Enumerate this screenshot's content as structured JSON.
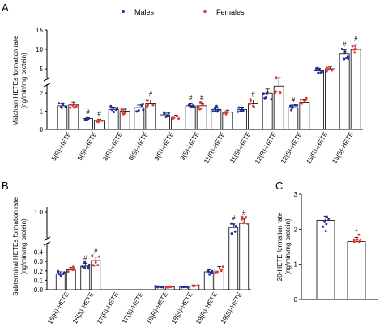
{
  "legend": {
    "males": "Males",
    "females": "Females"
  },
  "colors": {
    "males": "#1f2f9e",
    "females": "#e03a3a"
  },
  "chart_data": [
    {
      "panel": "A",
      "type": "bar",
      "ylabel": [
        "Midchain HETEs formation rate",
        "(ng/min/mg protein)"
      ],
      "scale": "broken-axis",
      "ylim_low": [
        0,
        2.5
      ],
      "ylim_high": [
        2.5,
        15
      ],
      "yticks_low": [
        0,
        1,
        2
      ],
      "yticks_high": [
        5,
        10,
        15
      ],
      "categories": [
        "5(R)-HETE",
        "5(S)-HETE",
        "8(R)-HETE",
        "8(S)-HETE",
        "9(R)-HETE",
        "9(S)-HETE",
        "11(R)-HETE",
        "11(S)-HETE",
        "12(R)-HETE",
        "12(S)-HETE",
        "15(R)-HETE",
        "15(S)-HETE"
      ],
      "series": [
        {
          "name": "Males",
          "values": [
            1.3,
            0.6,
            1.1,
            1.2,
            0.8,
            1.3,
            1.1,
            1.1,
            2.0,
            1.2,
            4.5,
            8.8
          ]
        },
        {
          "name": "Females",
          "values": [
            1.35,
            0.5,
            1.0,
            1.45,
            0.7,
            1.3,
            0.95,
            1.45,
            2.4,
            1.5,
            5.0,
            10.0
          ]
        }
      ],
      "significance": [
        {
          "category": "5(S)-HETE",
          "series": [
            "Males",
            "Females"
          ],
          "mark": "#"
        },
        {
          "category": "8(S)-HETE",
          "series": [
            "Females"
          ],
          "mark": "#"
        },
        {
          "category": "9(S)-HETE",
          "series": [
            "Males",
            "Females"
          ],
          "mark": "#"
        },
        {
          "category": "11(S)-HETE",
          "series": [
            "Females"
          ],
          "mark": "#"
        },
        {
          "category": "12(S)-HETE",
          "series": [
            "Males"
          ],
          "mark": "#"
        },
        {
          "category": "15(S)-HETE",
          "series": [
            "Males",
            "Females"
          ],
          "mark": "#"
        }
      ]
    },
    {
      "panel": "B",
      "type": "bar",
      "ylabel": [
        "Subterminal HETEs formation rate",
        "(ng/min/mg protein)"
      ],
      "scale": "broken-axis",
      "ylim_low": [
        0,
        0.5
      ],
      "ylim_high": [
        0.5,
        1.0
      ],
      "yticks_low": [
        0,
        0.1,
        0.2,
        0.3,
        0.4
      ],
      "yticks_high": [
        1.0
      ],
      "categories": [
        "16(R)-HETE",
        "16(S)-HETE",
        "17(R)-HETE",
        "17(S)-HETE",
        "18(R)-HETE",
        "18(S)-HETE",
        "19(R)-HETE",
        "19(S)-HETE"
      ],
      "series": [
        {
          "name": "Males",
          "values": [
            0.17,
            0.25,
            0,
            0,
            0.03,
            0.03,
            0.19,
            0.7
          ]
        },
        {
          "name": "Females",
          "values": [
            0.21,
            0.31,
            0,
            0,
            0.03,
            0.04,
            0.22,
            0.78
          ]
        }
      ],
      "significance": [
        {
          "category": "16(S)-HETE",
          "series": [
            "Males",
            "Females"
          ],
          "mark": "#"
        },
        {
          "category": "19(S)-HETE",
          "series": [
            "Males",
            "Females"
          ],
          "mark": "#"
        }
      ]
    },
    {
      "panel": "C",
      "type": "bar",
      "ylabel": [
        "20-HETE formation rate",
        "(ng/min/mg protein)"
      ],
      "ylim": [
        0,
        3
      ],
      "yticks": [
        0,
        1,
        2,
        3
      ],
      "categories": [
        "Males",
        "Females"
      ],
      "values": [
        2.25,
        1.65
      ],
      "significance": [
        {
          "category": "Females",
          "mark": "*"
        }
      ]
    }
  ]
}
